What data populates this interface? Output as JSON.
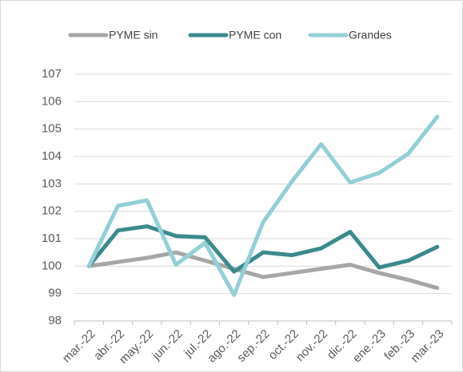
{
  "chart_data": {
    "type": "line",
    "categories": [
      "mar.-22",
      "abr.-22",
      "may.-22",
      "jun.-22",
      "jul.-22",
      "ago.-22",
      "sep.-22",
      "oct.-22",
      "nov.-22",
      "dic.-22",
      "ene.-23",
      "feb.-23",
      "mar.-23"
    ],
    "series": [
      {
        "name": "PYME sin",
        "color": "#a6a6a6",
        "values": [
          100,
          100.15,
          100.3,
          100.5,
          100.2,
          99.9,
          99.6,
          99.75,
          99.9,
          100.05,
          99.75,
          99.5,
          99.2
        ]
      },
      {
        "name": "PYME con",
        "color": "#3a8a8c",
        "values": [
          100,
          101.3,
          101.45,
          101.1,
          101.05,
          99.8,
          100.5,
          100.4,
          100.65,
          101.25,
          99.95,
          100.2,
          100.7
        ]
      },
      {
        "name": "Grandes",
        "color": "#92cfd6",
        "values": [
          100,
          102.2,
          102.4,
          100.05,
          100.85,
          98.95,
          101.6,
          103.1,
          104.45,
          103.05,
          103.4,
          104.1,
          105.45
        ]
      }
    ],
    "ylim": [
      98,
      107
    ],
    "yticks": [
      98,
      99,
      100,
      101,
      102,
      103,
      104,
      105,
      106,
      107
    ],
    "grid": true,
    "legend": "top"
  }
}
